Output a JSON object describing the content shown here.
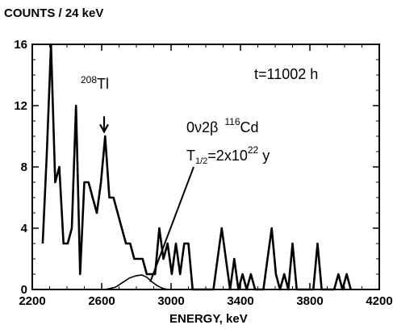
{
  "chart_data": {
    "type": "line",
    "ylabel": "COUNTS / 24 keV",
    "xlabel": "ENERGY, keV",
    "xlim": [
      2200,
      4200
    ],
    "ylim": [
      0,
      16
    ],
    "x_ticks": [
      2200,
      2600,
      3000,
      3400,
      3800,
      4200
    ],
    "x_tick_labels": [
      "2200",
      "2600",
      "3000",
      "3400",
      "3800",
      "4200"
    ],
    "y_ticks": [
      0,
      4,
      8,
      12,
      16
    ],
    "y_tick_labels": [
      "0",
      "4",
      "8",
      "12",
      "16"
    ],
    "grid": false,
    "series": [
      {
        "style": "solid-step",
        "color": "#000000",
        "x": [
          2260,
          2284,
          2308,
          2332,
          2356,
          2380,
          2404,
          2428,
          2452,
          2476,
          2500,
          2524,
          2548,
          2572,
          2596,
          2620,
          2644,
          2668,
          2692,
          2716,
          2740,
          2764,
          2788,
          2812,
          2836,
          2860,
          2884,
          2908,
          2932,
          2956,
          2980,
          3004,
          3028,
          3052,
          3076,
          3100,
          3124,
          3148,
          3172,
          3196,
          3220,
          3244,
          3268,
          3292,
          3316,
          3340,
          3364,
          3388,
          3412,
          3436,
          3460,
          3484,
          3508,
          3532,
          3556,
          3580,
          3604,
          3628,
          3652,
          3676,
          3700,
          3724,
          3748,
          3772,
          3796,
          3820,
          3844,
          3868,
          3892,
          3916,
          3940,
          3964,
          3988,
          4012,
          4036
        ],
        "y": [
          3,
          9,
          16,
          7,
          8,
          3,
          3,
          4,
          12,
          1,
          7,
          7,
          6,
          5,
          7,
          10,
          6,
          6,
          5,
          4,
          3,
          3,
          2,
          2,
          2,
          1,
          1,
          1,
          4,
          2,
          3,
          1,
          3,
          1,
          3,
          3,
          0,
          0,
          0,
          0,
          0,
          0,
          2,
          4,
          2,
          0,
          2,
          0,
          1,
          0,
          1,
          0,
          0,
          0,
          2,
          4,
          1,
          0,
          1,
          0,
          3,
          0,
          0,
          0,
          0,
          0,
          3,
          0,
          0,
          0,
          0,
          1,
          0,
          1,
          0
        ]
      },
      {
        "style": "solid-smooth",
        "color": "#000000",
        "x": [
          2560,
          2620,
          2680,
          2720,
          2760,
          2800,
          2830,
          2860,
          2890,
          2920,
          2950,
          2980
        ],
        "y": [
          0,
          0,
          0.15,
          0.45,
          0.75,
          0.9,
          0.95,
          0.8,
          0.5,
          0.25,
          0.08,
          0
        ]
      }
    ],
    "annotations": [
      {
        "isotope": "Tl",
        "mass_number": "208",
        "x": 2614,
        "arrow_y_start": 11.3,
        "arrow_y_end": 10.3
      },
      {
        "text": "t=11002 h"
      },
      {
        "line1_prefix": "0ν2β",
        "line1_mass": "116",
        "line1_isotope": "Cd",
        "line2_T": "T",
        "line2_sub": "1/2",
        "line2_eq": "=2x10",
        "line2_exp": "22",
        "line2_unit": " y",
        "pointer_to_x": 2880,
        "pointer_to_y": 0.5
      }
    ]
  }
}
